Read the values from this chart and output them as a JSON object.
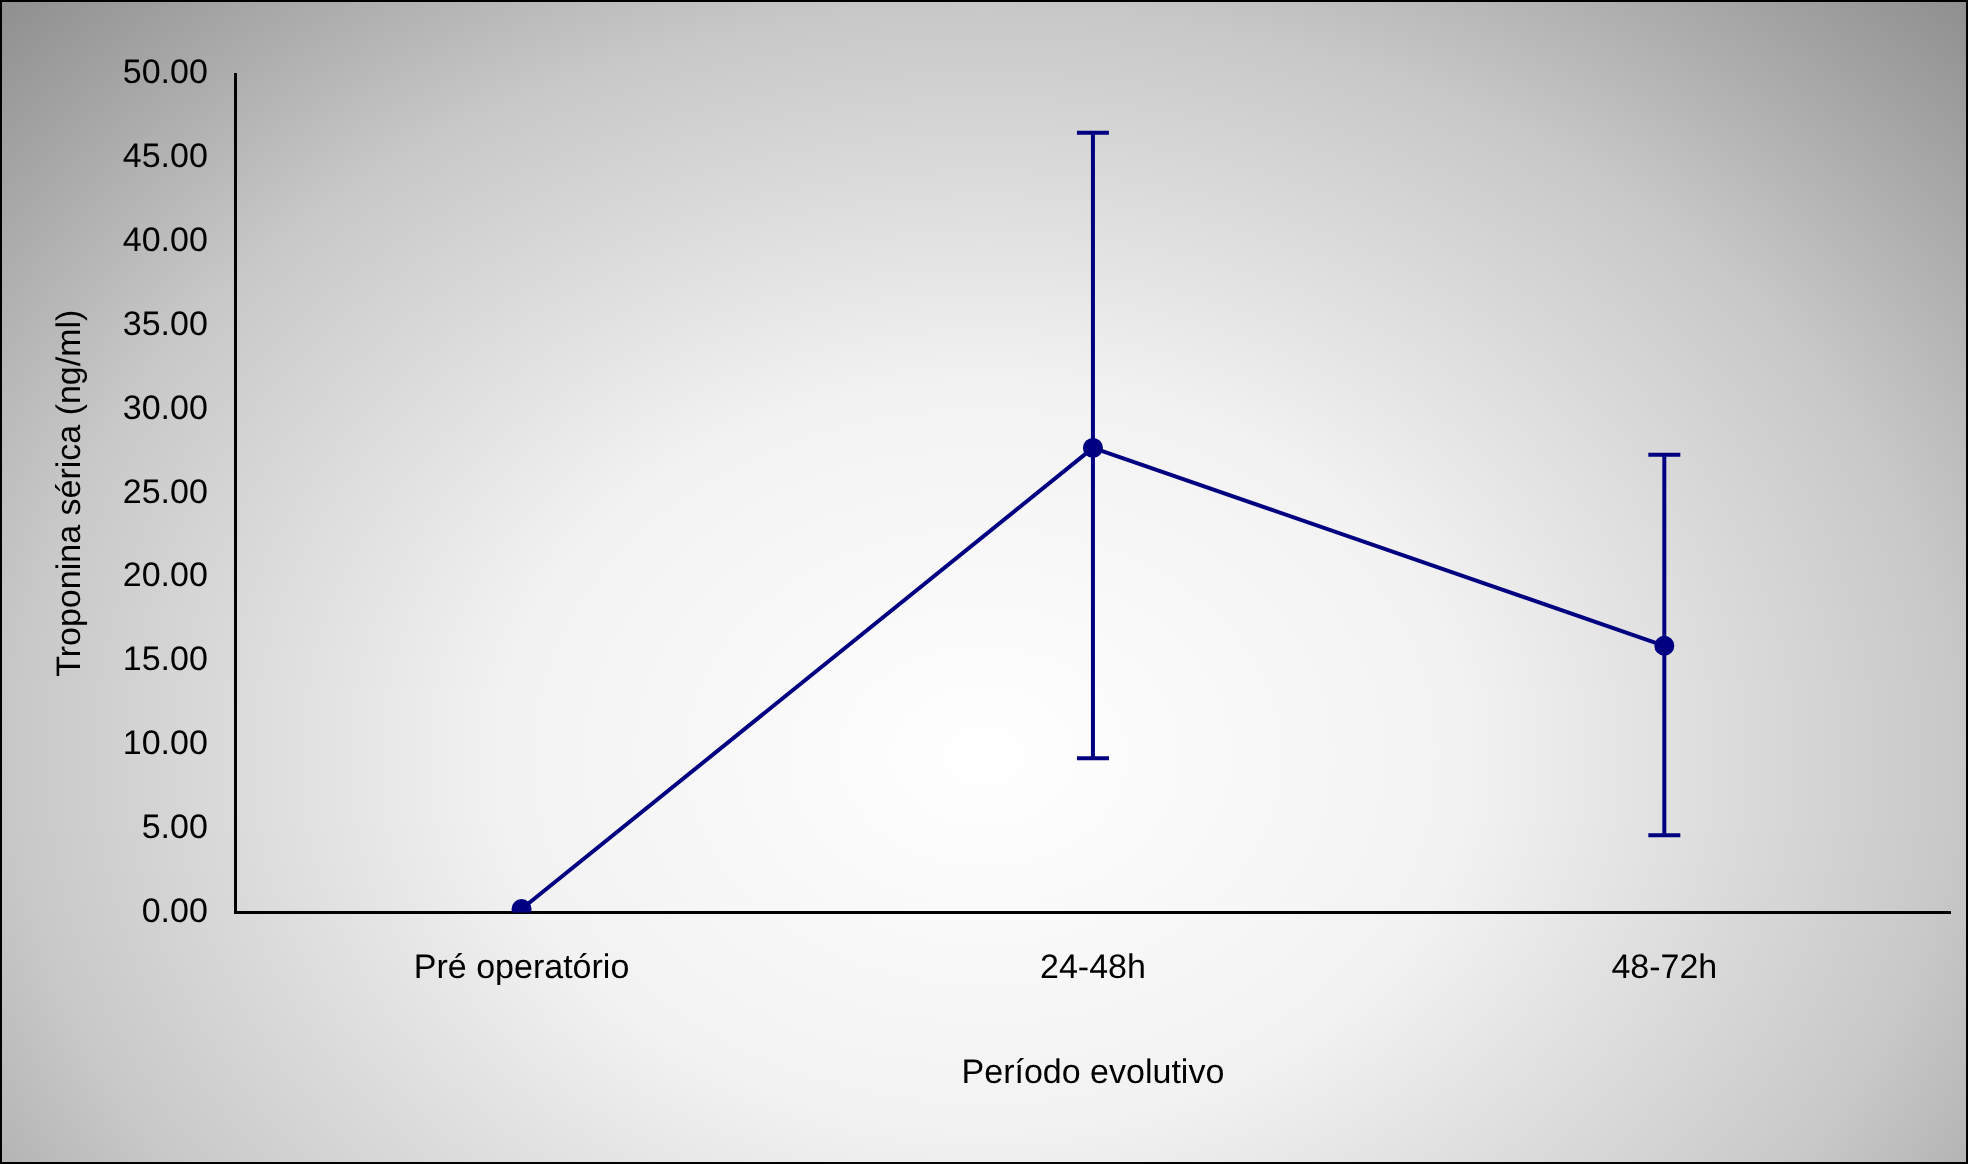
{
  "chart_data": {
    "type": "line",
    "xlabel": "Período evolutivo",
    "ylabel": "Troponina sérica (ng/ml)",
    "categories": [
      "Pré operatório",
      "24-48h",
      "48-72h"
    ],
    "series": [
      {
        "color": "#000080",
        "values": [
          0.2,
          27.7,
          15.9
        ],
        "errors": [
          null,
          [
            9.2,
            46.5
          ],
          [
            4.6,
            27.3
          ]
        ]
      }
    ],
    "ylim": [
      0,
      50
    ],
    "yticks": [
      {
        "value": 0,
        "label": "0.00"
      },
      {
        "value": 5,
        "label": "5.00"
      },
      {
        "value": 10,
        "label": "10.00"
      },
      {
        "value": 15,
        "label": "15.00"
      },
      {
        "value": 20,
        "label": "20.00"
      },
      {
        "value": 25,
        "label": "25.00"
      },
      {
        "value": 30,
        "label": "30.00"
      },
      {
        "value": 35,
        "label": "35.00"
      },
      {
        "value": 40,
        "label": "40.00"
      },
      {
        "value": 45,
        "label": "45.00"
      },
      {
        "value": 50,
        "label": "50.00"
      }
    ],
    "grid": false,
    "legend": false,
    "marker": "circle",
    "line_style": "solid"
  }
}
